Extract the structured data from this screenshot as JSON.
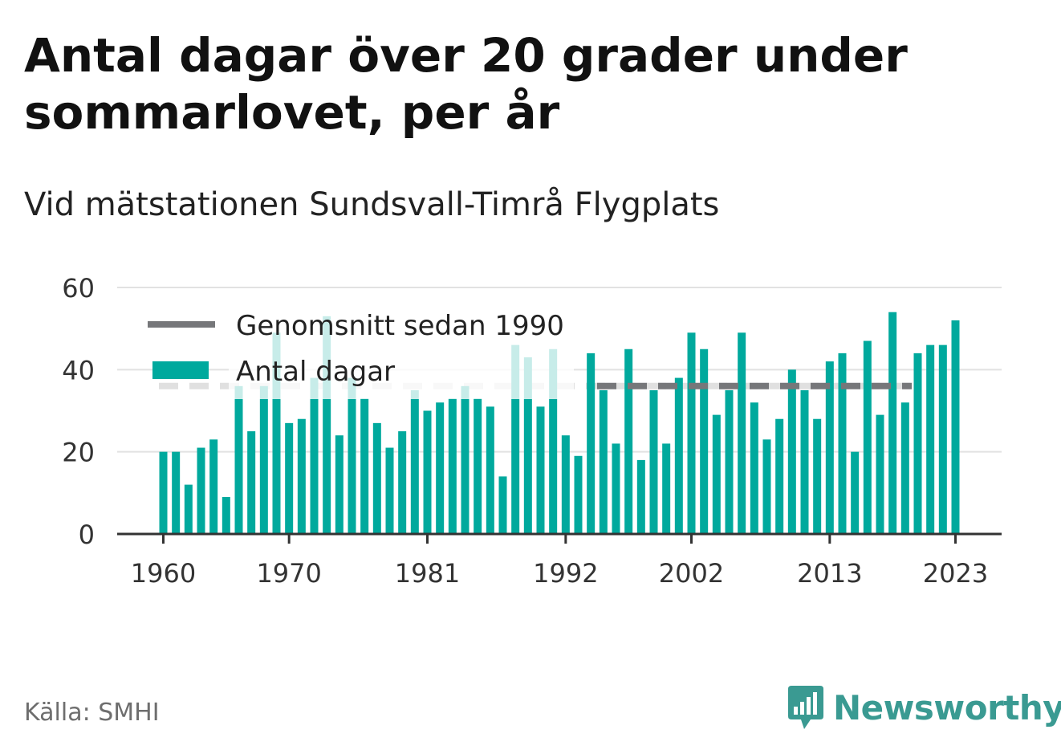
{
  "header": {
    "title": "Antal dagar över 20 grader under sommarlovet, per år",
    "subtitle": "Vid mätstationen Sundsvall-Timrå Flygplats"
  },
  "footer": {
    "source": "Källa: SMHI",
    "brand": "Newsworthy"
  },
  "colors": {
    "bar": "#00a99d",
    "bar_ghost": "#cdeceb",
    "average_line": "#76777a",
    "average_line_ghost": "#e0e0e0",
    "grid": "#e2e2e2",
    "axis": "#333333",
    "brand": "#3a9a92"
  },
  "chart_data": {
    "type": "bar",
    "x": [
      1960,
      1961,
      1962,
      1963,
      1964,
      1965,
      1966,
      1967,
      1968,
      1969,
      1970,
      1971,
      1972,
      1973,
      1974,
      1975,
      1976,
      1977,
      1978,
      1979,
      1980,
      1981,
      1982,
      1983,
      1984,
      1985,
      1986,
      1987,
      1988,
      1989,
      1990,
      1991,
      1992,
      1993,
      1994,
      1995,
      1996,
      1997,
      1998,
      1999,
      2000,
      2001,
      2002,
      2003,
      2004,
      2005,
      2006,
      2007,
      2008,
      2009,
      2010,
      2011,
      2012,
      2013,
      2014,
      2015,
      2016,
      2017,
      2018,
      2019,
      2020,
      2021,
      2022,
      2023
    ],
    "values": [
      20,
      20,
      12,
      21,
      23,
      9,
      36,
      25,
      36,
      49,
      27,
      28,
      38,
      53,
      24,
      38,
      33,
      27,
      21,
      25,
      35,
      30,
      32,
      33,
      36,
      33,
      31,
      14,
      46,
      43,
      31,
      45,
      24,
      19,
      44,
      35,
      22,
      45,
      18,
      35,
      22,
      38,
      49,
      45,
      29,
      35,
      49,
      32,
      23,
      28,
      40,
      35,
      28,
      42,
      44,
      20,
      47,
      29,
      54,
      32,
      44,
      46,
      46,
      52
    ],
    "series": [
      {
        "name": "Genomsnitt sedan 1990",
        "type": "line",
        "value": 36,
        "from": 1990
      },
      {
        "name": "Antal dagar",
        "type": "bar"
      }
    ],
    "x_ticks": [
      "1960",
      "1970",
      "1981",
      "1992",
      "2002",
      "2013",
      "2023"
    ],
    "y_ticks": [
      "0",
      "20",
      "40",
      "60"
    ],
    "ylim": [
      0,
      60
    ],
    "grid": true,
    "legend_position": "top-left",
    "xlabel": "",
    "ylabel": ""
  }
}
